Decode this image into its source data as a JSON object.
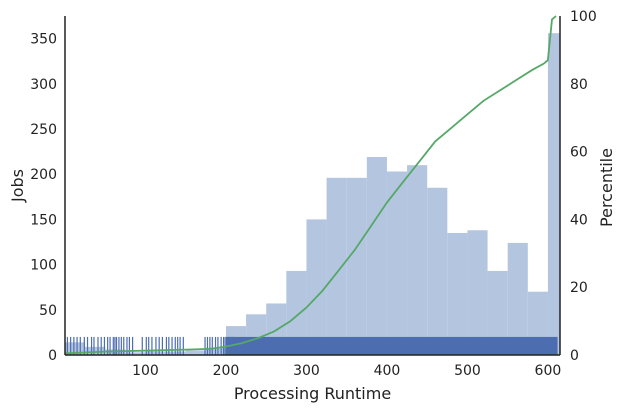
{
  "chart_data": {
    "type": "histogram",
    "xlabel": "Processing Runtime",
    "ylabel": "Jobs",
    "y2label": "Percentile",
    "xlim": [
      0,
      615
    ],
    "ylim": [
      0,
      375
    ],
    "y2lim": [
      0,
      100
    ],
    "xticks": [
      100,
      200,
      300,
      400,
      500,
      600
    ],
    "yticks": [
      0,
      50,
      100,
      150,
      200,
      250,
      300,
      350
    ],
    "y2ticks": [
      0,
      20,
      40,
      60,
      80,
      100
    ],
    "grid": false,
    "colors": {
      "bars": "#b4c5e0",
      "rug": "#4c6db0",
      "percentile_line": "#55a868",
      "axis": "#222222"
    },
    "histogram": {
      "bin_edges": [
        0,
        25,
        50,
        75,
        100,
        125,
        150,
        175,
        200,
        225,
        250,
        275,
        300,
        325,
        350,
        375,
        400,
        425,
        450,
        475,
        500,
        525,
        550,
        575,
        600,
        615
      ],
      "counts": [
        14,
        9,
        6,
        3,
        4,
        4,
        5,
        8,
        32,
        45,
        57,
        93,
        150,
        196,
        196,
        219,
        203,
        210,
        185,
        135,
        138,
        93,
        124,
        70,
        356
      ]
    },
    "percentile_line": {
      "x": [
        0,
        50,
        100,
        150,
        180,
        200,
        220,
        240,
        260,
        280,
        300,
        320,
        340,
        360,
        380,
        400,
        420,
        440,
        460,
        480,
        500,
        520,
        540,
        560,
        580,
        595,
        600,
        605,
        610
      ],
      "y": [
        0.5,
        1,
        1.3,
        1.6,
        1.8,
        2.5,
        3.5,
        5,
        7,
        10,
        14,
        19,
        25,
        31,
        38,
        45,
        51,
        57,
        63,
        67,
        71,
        75,
        78,
        81,
        84,
        86,
        87,
        99,
        100
      ]
    },
    "rug": {
      "x": [
        3,
        7,
        11,
        15,
        19,
        24,
        28,
        33,
        36,
        41,
        45,
        49,
        53,
        56,
        60,
        62,
        64,
        67,
        70,
        73,
        77,
        80,
        84,
        96,
        101,
        104,
        108,
        113,
        117,
        121,
        126,
        129,
        133,
        137,
        140,
        143,
        147,
        174,
        177,
        180,
        183,
        187,
        190,
        194,
        197,
        199,
        202,
        204,
        206,
        208,
        210
      ],
      "dense_range": [
        200,
        612
      ],
      "height": 20
    }
  }
}
